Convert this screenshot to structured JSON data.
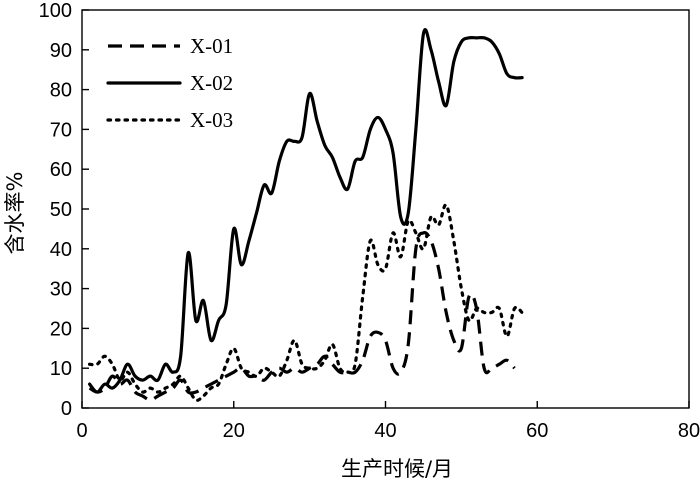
{
  "chart_data": {
    "type": "line",
    "title": "",
    "xlabel": "生产时候/月",
    "ylabel": "含水率%",
    "xlim": [
      0,
      80
    ],
    "ylim": [
      0,
      100
    ],
    "xticks": [
      0,
      20,
      40,
      60,
      80
    ],
    "yticks": [
      0,
      10,
      20,
      30,
      40,
      50,
      60,
      70,
      80,
      90,
      100
    ],
    "grid": false,
    "legend_position": "top-left",
    "series": [
      {
        "name": "X-01",
        "style": "dashed",
        "x": [
          1,
          2,
          3,
          4,
          5,
          6,
          7,
          8,
          9,
          10,
          11,
          12,
          13,
          14,
          15,
          16,
          17,
          18,
          19,
          20,
          21,
          22,
          23,
          24,
          25,
          26,
          27,
          28,
          29,
          30,
          31,
          32,
          33,
          34,
          35,
          36,
          37,
          38,
          39,
          40,
          41,
          42,
          43,
          44,
          45,
          46,
          47,
          48,
          49,
          50,
          51,
          52,
          53,
          54,
          55,
          56,
          57
        ],
        "y": [
          5,
          4,
          5,
          8,
          6,
          7,
          4,
          3,
          2,
          3,
          4,
          5,
          7,
          4,
          4,
          5,
          6,
          7,
          8,
          9,
          10,
          8,
          8,
          7,
          9,
          10,
          9,
          10,
          9,
          10,
          11,
          13,
          11,
          9,
          9,
          9,
          12,
          18,
          19,
          17,
          10,
          9,
          16,
          40,
          44,
          42,
          35,
          24,
          17,
          15,
          28,
          25,
          10,
          10,
          11,
          12,
          10
        ]
      },
      {
        "name": "X-02",
        "style": "solid",
        "x": [
          1,
          2,
          3,
          4,
          5,
          6,
          7,
          8,
          9,
          10,
          11,
          12,
          13,
          14,
          15,
          16,
          17,
          18,
          19,
          20,
          21,
          22,
          23,
          24,
          25,
          26,
          27,
          28,
          29,
          30,
          31,
          32,
          33,
          34,
          35,
          36,
          37,
          38,
          39,
          40,
          41,
          42,
          43,
          44,
          45,
          46,
          47,
          48,
          49,
          50,
          51,
          52,
          53,
          54,
          55,
          56,
          57,
          58
        ],
        "y": [
          6,
          4,
          6,
          5,
          7,
          11,
          8,
          7,
          8,
          7,
          11,
          9,
          13,
          39,
          22,
          27,
          17,
          22,
          26,
          45,
          36,
          42,
          49,
          56,
          54,
          62,
          67,
          67,
          68,
          79,
          72,
          66,
          63,
          58,
          55,
          62,
          63,
          70,
          73,
          70,
          64,
          48,
          49,
          70,
          94,
          90,
          82,
          76,
          87,
          92,
          93,
          93,
          93,
          92,
          89,
          84,
          83,
          83
        ]
      },
      {
        "name": "X-03",
        "style": "dotted",
        "x": [
          1,
          2,
          3,
          4,
          5,
          6,
          7,
          8,
          9,
          10,
          11,
          12,
          13,
          14,
          15,
          16,
          17,
          18,
          19,
          20,
          21,
          22,
          23,
          24,
          25,
          26,
          27,
          28,
          29,
          30,
          31,
          32,
          33,
          34,
          35,
          36,
          37,
          38,
          39,
          40,
          41,
          42,
          43,
          44,
          45,
          46,
          47,
          48,
          49,
          50,
          51,
          52,
          53,
          54,
          55,
          56,
          57,
          58
        ],
        "y": [
          11,
          11,
          13,
          11,
          7,
          9,
          6,
          4,
          5,
          4,
          5,
          6,
          8,
          5,
          2,
          3,
          5,
          6,
          11,
          15,
          10,
          9,
          8,
          10,
          9,
          8,
          12,
          17,
          11,
          10,
          10,
          12,
          16,
          10,
          9,
          11,
          28,
          42,
          36,
          35,
          44,
          38,
          47,
          44,
          40,
          48,
          46,
          51,
          42,
          30,
          22,
          25,
          24,
          24,
          25,
          18,
          25,
          24
        ]
      }
    ]
  }
}
